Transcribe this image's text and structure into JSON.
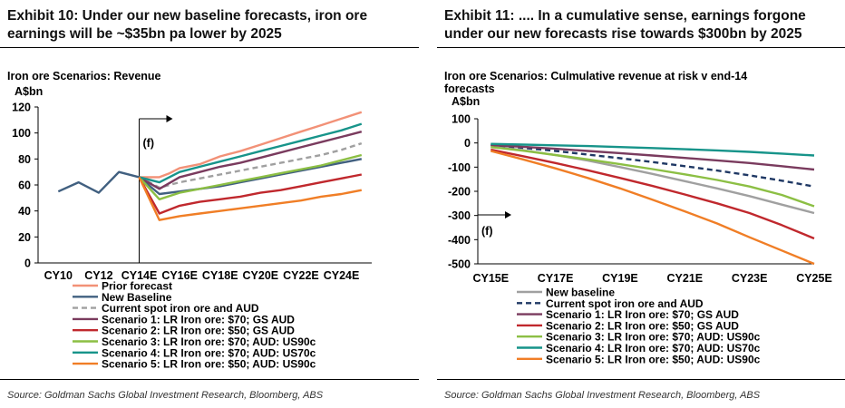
{
  "left": {
    "exhibit_title": "Exhibit 10: Under our new baseline forecasts, iron ore earnings will be ~$35bn pa lower by 2025",
    "exhibit_title_line1": "Exhibit 10: Under our new baseline forecasts, iron ore",
    "exhibit_title_line2": "earnings will be ~$35bn pa lower by 2025",
    "source": "Source: Goldman Sachs Global Investment Research, Bloomberg, ABS"
  },
  "right": {
    "exhibit_title": "Exhibit 11: .... In a cumulative sense, earnings forgone under our new forecasts rise towards $300bn by 2025",
    "exhibit_title_line1": "Exhibit 11: .... In a cumulative sense, earnings forgone",
    "exhibit_title_line2": "under our new forecasts rise towards $300bn by 2025",
    "source": "Source: Goldman Sachs Global Investment Research, Bloomberg, ABS"
  },
  "chart_data": [
    {
      "type": "line",
      "title": "Iron ore Scenarios: Revenue",
      "ylabel": "A$bn",
      "xlabel": "",
      "ylim": [
        0,
        120
      ],
      "yticks": [
        0,
        20,
        40,
        60,
        80,
        100,
        120
      ],
      "x": [
        2010,
        2011,
        2012,
        2013,
        2014,
        2015,
        2016,
        2017,
        2018,
        2019,
        2020,
        2021,
        2022,
        2023,
        2024,
        2025
      ],
      "xlim": [
        2009,
        2025.5
      ],
      "xtick_values": [
        2010,
        2012,
        2014,
        2016,
        2018,
        2020,
        2022,
        2024
      ],
      "xtick_labels": [
        "CY10",
        "CY12",
        "CY14E",
        "CY16E",
        "CY18E",
        "CY20E",
        "CY22E",
        "CY24E"
      ],
      "annotation": "(f)",
      "forecast_start": 2014,
      "series": [
        {
          "name": "Prior forecast",
          "color": "#f29177",
          "dash": false,
          "x": [
            2014,
            2014.5,
            2015,
            2015.5,
            2016,
            2017,
            2018,
            2019,
            2020,
            2021,
            2022,
            2023,
            2024,
            2025
          ],
          "values": [
            66,
            66,
            66,
            69,
            73,
            76,
            82,
            86,
            91,
            96,
            101,
            106,
            111,
            116
          ]
        },
        {
          "name": "New Baseline",
          "color": "#416080",
          "dash": false,
          "x": [
            2010,
            2011,
            2012,
            2013,
            2014,
            2015,
            2016,
            2017,
            2018,
            2019,
            2020,
            2021,
            2022,
            2023,
            2024,
            2025
          ],
          "values": [
            55,
            62,
            54,
            70,
            66,
            53,
            55,
            57,
            59,
            62,
            65,
            68,
            71,
            74,
            77,
            80
          ]
        },
        {
          "name": "Current spot iron ore and AUD",
          "color": "#a0a0a0",
          "dash": true,
          "x": [
            2014,
            2015,
            2016,
            2017,
            2018,
            2019,
            2020,
            2021,
            2022,
            2023,
            2024,
            2025
          ],
          "values": [
            66,
            58,
            62,
            65,
            68,
            71,
            74,
            77,
            80,
            83,
            87,
            92
          ]
        },
        {
          "name": "Scenario 1: LR Iron ore: $70; GS AUD",
          "color": "#7a3b5e",
          "dash": false,
          "x": [
            2014,
            2015,
            2016,
            2017,
            2018,
            2019,
            2020,
            2021,
            2022,
            2023,
            2024,
            2025
          ],
          "values": [
            66,
            57,
            66,
            70,
            74,
            77,
            81,
            85,
            89,
            93,
            97,
            101
          ]
        },
        {
          "name": "Scenario 2: LR Iron ore: $50; GS AUD",
          "color": "#c0282d",
          "dash": false,
          "x": [
            2014,
            2015,
            2016,
            2017,
            2018,
            2019,
            2020,
            2021,
            2022,
            2023,
            2024,
            2025
          ],
          "values": [
            66,
            38,
            44,
            47,
            49,
            51,
            54,
            56,
            59,
            62,
            65,
            68
          ]
        },
        {
          "name": "Scenario 3: LR Iron ore: $70; AUD: US90c",
          "color": "#8cbf44",
          "dash": false,
          "x": [
            2014,
            2015,
            2016,
            2017,
            2018,
            2019,
            2020,
            2021,
            2022,
            2023,
            2024,
            2025
          ],
          "values": [
            66,
            49,
            54,
            57,
            60,
            63,
            66,
            69,
            72,
            75,
            79,
            83
          ]
        },
        {
          "name": "Scenario 4: LR Iron ore: $70; AUD: US70c",
          "color": "#17948a",
          "dash": false,
          "x": [
            2014,
            2015,
            2016,
            2017,
            2018,
            2019,
            2020,
            2021,
            2022,
            2023,
            2024,
            2025
          ],
          "values": [
            66,
            62,
            70,
            74,
            78,
            82,
            86,
            90,
            94,
            98,
            102,
            107
          ]
        },
        {
          "name": "Scenario 5: LR Iron ore: $50; AUD: US90c",
          "color": "#f07e26",
          "dash": false,
          "x": [
            2014,
            2015,
            2016,
            2017,
            2018,
            2019,
            2020,
            2021,
            2022,
            2023,
            2024,
            2025
          ],
          "values": [
            66,
            33,
            36,
            38,
            40,
            42,
            44,
            46,
            48,
            51,
            53,
            56
          ]
        }
      ]
    },
    {
      "type": "line",
      "title": "Iron ore Scenarios: Culmulative revenue at risk v end-14 forecasts",
      "title_line1": "Iron ore Scenarios: Culmulative revenue at risk v end-14",
      "title_line2": "forecasts",
      "ylabel": "A$bn",
      "xlabel": "",
      "ylim": [
        -500,
        100
      ],
      "yticks": [
        -500,
        -400,
        -300,
        -200,
        -100,
        0,
        100
      ],
      "x": [
        2015,
        2016,
        2017,
        2018,
        2019,
        2020,
        2021,
        2022,
        2023,
        2024,
        2025
      ],
      "xlim": [
        2014.6,
        2025
      ],
      "xtick_values": [
        2015,
        2017,
        2019,
        2021,
        2023,
        2025
      ],
      "xtick_labels": [
        "CY15E",
        "CY17E",
        "CY19E",
        "CY21E",
        "CY23E",
        "CY25E"
      ],
      "annotation": "(f)",
      "series": [
        {
          "name": "New baseline",
          "color": "#a0a0a0",
          "dash": false,
          "values": [
            -13,
            -30,
            -50,
            -73,
            -100,
            -128,
            -158,
            -188,
            -220,
            -255,
            -290
          ]
        },
        {
          "name": "Current spot iron ore and AUD",
          "color": "#1f3864",
          "dash": true,
          "values": [
            -8,
            -20,
            -33,
            -48,
            -63,
            -79,
            -96,
            -114,
            -134,
            -156,
            -180
          ]
        },
        {
          "name": "Scenario 1: LR Iron ore: $70; GS AUD",
          "color": "#7a3b5e",
          "dash": false,
          "values": [
            -9,
            -16,
            -24,
            -33,
            -42,
            -52,
            -62,
            -72,
            -83,
            -96,
            -110
          ]
        },
        {
          "name": "Scenario 2: LR Iron ore: $50; GS AUD",
          "color": "#c0282d",
          "dash": false,
          "values": [
            -28,
            -55,
            -83,
            -113,
            -145,
            -178,
            -213,
            -250,
            -290,
            -340,
            -395
          ]
        },
        {
          "name": "Scenario 3: LR Iron ore: $70; AUD: US90c",
          "color": "#8cbf44",
          "dash": false,
          "values": [
            -17,
            -32,
            -50,
            -68,
            -88,
            -108,
            -130,
            -153,
            -180,
            -215,
            -262
          ]
        },
        {
          "name": "Scenario 4: LR Iron ore: $70; AUD: US70c",
          "color": "#17948a",
          "dash": false,
          "values": [
            -4,
            -7,
            -10,
            -13,
            -17,
            -21,
            -26,
            -31,
            -37,
            -44,
            -52
          ]
        },
        {
          "name": "Scenario 5: LR Iron ore: $50; AUD: US90c",
          "color": "#f07e26",
          "dash": false,
          "values": [
            -33,
            -68,
            -105,
            -145,
            -188,
            -235,
            -283,
            -333,
            -390,
            -445,
            -500
          ]
        }
      ]
    }
  ]
}
